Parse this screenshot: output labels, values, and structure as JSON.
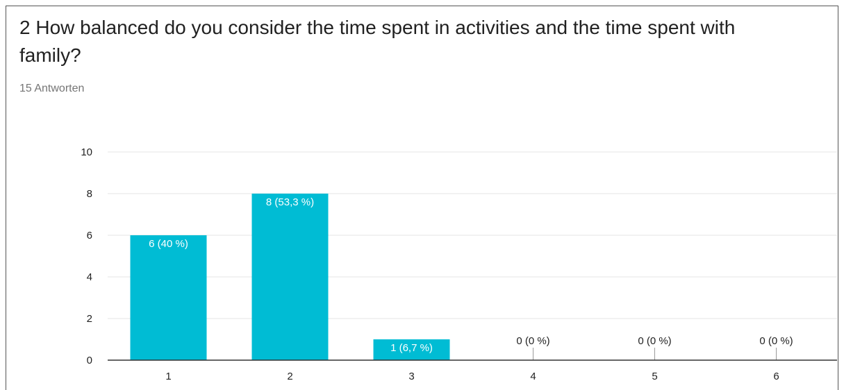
{
  "question": {
    "title": "2 How balanced do you consider the time spent in activities and the time spent with family?",
    "responses": "15 Antworten"
  },
  "colors": {
    "bar": "#00bcd4",
    "grid": "#e6e6e6",
    "baseline": "#333333"
  },
  "chart_data": {
    "type": "bar",
    "title": "",
    "xlabel": "",
    "ylabel": "",
    "categories": [
      "1",
      "2",
      "3",
      "4",
      "5",
      "6"
    ],
    "values": [
      6,
      8,
      1,
      0,
      0,
      0
    ],
    "labels": [
      "6 (40 %)",
      "8 (53,3 %)",
      "1 (6,7 %)",
      "0 (0 %)",
      "0 (0 %)",
      "0 (0 %)"
    ],
    "ylim": [
      0,
      10
    ],
    "yticks": [
      0,
      2,
      4,
      6,
      8,
      10
    ],
    "grid": true,
    "legend": "none"
  }
}
